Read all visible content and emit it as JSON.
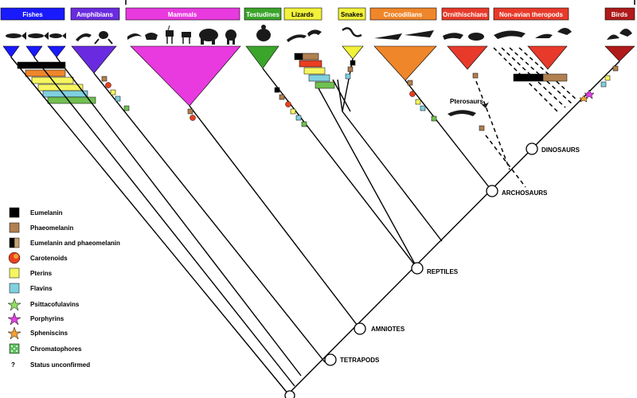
{
  "groups": [
    {
      "id": "fishes",
      "label": "Fishes",
      "color": "#1a1aff",
      "text": "light"
    },
    {
      "id": "amphibians",
      "label": "Amphibians",
      "color": "#6a2be0",
      "text": "light"
    },
    {
      "id": "mammals",
      "label": "Mammals",
      "color": "#e83adf",
      "text": "light"
    },
    {
      "id": "testudines",
      "label": "Testudines",
      "color": "#3aa52a",
      "text": "light"
    },
    {
      "id": "lizards",
      "label": "Lizards",
      "color": "#f2f23a",
      "text": "dark"
    },
    {
      "id": "snakes",
      "label": "Snakes",
      "color": "#f2f23a",
      "text": "dark"
    },
    {
      "id": "crocodilians",
      "label": "Crocodilians",
      "color": "#f0862a",
      "text": "light"
    },
    {
      "id": "ornithischians",
      "label": "Ornithischians",
      "color": "#e83a2a",
      "text": "light"
    },
    {
      "id": "nonavian",
      "label": "Non-avian theropods",
      "color": "#e83a2a",
      "text": "light"
    },
    {
      "id": "birds",
      "label": "Birds",
      "color": "#b01a1a",
      "text": "light"
    }
  ],
  "nodes": [
    {
      "id": "dinosaurs",
      "label": "DINOSAURS"
    },
    {
      "id": "archosaurs",
      "label": "ARCHOSAURS"
    },
    {
      "id": "reptiles",
      "label": "REPTILES"
    },
    {
      "id": "amniotes",
      "label": "AMNIOTES"
    },
    {
      "id": "tetrapods",
      "label": "TETRAPODS"
    }
  ],
  "pterosaurs_label": "Pterosaurs",
  "legend": [
    {
      "id": "eumelanin",
      "label": "Eumelanin",
      "symbol": "square",
      "color": "#000000"
    },
    {
      "id": "phaeomelanin",
      "label": "Phaeomelanin",
      "symbol": "square",
      "color": "#b08050"
    },
    {
      "id": "eu-phaeo",
      "label": "Eumelanin and phaeomelanin",
      "symbol": "half-square",
      "color": "#000000",
      "color2": "#c8a070"
    },
    {
      "id": "carotenoids",
      "label": "Carotenoids",
      "symbol": "circle",
      "color": "#e83a1a",
      "color2": "#f5a030"
    },
    {
      "id": "pterins",
      "label": "Pterins",
      "symbol": "square",
      "color": "#f5f560"
    },
    {
      "id": "flavins",
      "label": "Flavins",
      "symbol": "square",
      "color": "#80d0e0"
    },
    {
      "id": "psittacofulvins",
      "label": "Psittacofulavins",
      "symbol": "star",
      "color": "#90e060"
    },
    {
      "id": "porphyrins",
      "label": "Porphyrins",
      "symbol": "star",
      "color": "#e040e0"
    },
    {
      "id": "spheniscins",
      "label": "Spheniscins",
      "symbol": "star",
      "color": "#f5a030"
    },
    {
      "id": "chromatophores",
      "label": "Chromatophores",
      "symbol": "dotted-square",
      "color": "#60c060"
    },
    {
      "id": "unconfirmed",
      "label": "Status unconfirmed",
      "symbol": "question",
      "color": "#000000"
    }
  ],
  "line_color": "#000000"
}
